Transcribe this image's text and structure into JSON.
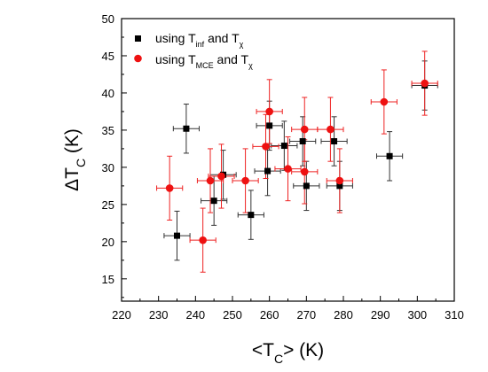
{
  "chart_data": {
    "type": "scatter",
    "xlabel": "<T_C> (K)",
    "ylabel": "ΔT_C (K)",
    "xlim": [
      220,
      310
    ],
    "ylim": [
      12,
      50
    ],
    "xticks": [
      220,
      230,
      240,
      250,
      260,
      270,
      280,
      290,
      300,
      310
    ],
    "yticks": [
      15,
      20,
      25,
      30,
      35,
      40,
      45,
      50
    ],
    "legend_position": "top-left",
    "series": [
      {
        "name_main": "using T",
        "name_sub1": "inf",
        "name_mid": " and T",
        "name_sub2": "χ",
        "marker": "square",
        "color": "#000000",
        "errorbar_color": "#333333",
        "points": [
          {
            "x": 235.0,
            "y": 20.8,
            "xerr": 3.5,
            "yerr": 3.3
          },
          {
            "x": 237.5,
            "y": 35.2,
            "xerr": 3.5,
            "yerr": 3.3
          },
          {
            "x": 245.0,
            "y": 25.5,
            "xerr": 3.5,
            "yerr": 3.3
          },
          {
            "x": 247.5,
            "y": 29.0,
            "xerr": 3.5,
            "yerr": 3.3
          },
          {
            "x": 255.0,
            "y": 23.6,
            "xerr": 3.5,
            "yerr": 3.3
          },
          {
            "x": 259.5,
            "y": 29.5,
            "xerr": 3.5,
            "yerr": 3.3
          },
          {
            "x": 260.0,
            "y": 35.6,
            "xerr": 3.5,
            "yerr": 3.3
          },
          {
            "x": 264.0,
            "y": 32.9,
            "xerr": 3.5,
            "yerr": 3.3
          },
          {
            "x": 269.0,
            "y": 33.5,
            "xerr": 3.5,
            "yerr": 3.3
          },
          {
            "x": 270.0,
            "y": 27.5,
            "xerr": 3.5,
            "yerr": 3.3
          },
          {
            "x": 277.5,
            "y": 33.5,
            "xerr": 3.5,
            "yerr": 3.3
          },
          {
            "x": 279.0,
            "y": 27.5,
            "xerr": 3.5,
            "yerr": 3.3
          },
          {
            "x": 292.5,
            "y": 31.5,
            "xerr": 3.5,
            "yerr": 3.3
          },
          {
            "x": 302.0,
            "y": 41.0,
            "xerr": 3.5,
            "yerr": 3.3
          }
        ]
      },
      {
        "name_main": "using T",
        "name_sub1": "MCE",
        "name_mid": " and T",
        "name_sub2": "χ",
        "marker": "circle",
        "color": "#ee1111",
        "errorbar_color": "#ee2222",
        "points": [
          {
            "x": 233.0,
            "y": 27.2,
            "xerr": 3.5,
            "yerr": 4.3
          },
          {
            "x": 242.0,
            "y": 20.2,
            "xerr": 3.5,
            "yerr": 4.3
          },
          {
            "x": 244.0,
            "y": 28.2,
            "xerr": 3.5,
            "yerr": 4.3
          },
          {
            "x": 247.0,
            "y": 28.8,
            "xerr": 3.5,
            "yerr": 4.3
          },
          {
            "x": 253.5,
            "y": 28.2,
            "xerr": 3.5,
            "yerr": 4.3
          },
          {
            "x": 259.0,
            "y": 32.8,
            "xerr": 3.5,
            "yerr": 4.3
          },
          {
            "x": 260.0,
            "y": 37.5,
            "xerr": 3.5,
            "yerr": 4.3
          },
          {
            "x": 265.0,
            "y": 29.8,
            "xerr": 3.5,
            "yerr": 4.3
          },
          {
            "x": 269.5,
            "y": 35.1,
            "xerr": 3.5,
            "yerr": 4.3
          },
          {
            "x": 269.5,
            "y": 29.4,
            "xerr": 3.5,
            "yerr": 4.3
          },
          {
            "x": 276.5,
            "y": 35.1,
            "xerr": 3.5,
            "yerr": 4.3
          },
          {
            "x": 279.0,
            "y": 28.2,
            "xerr": 3.5,
            "yerr": 4.3
          },
          {
            "x": 291.0,
            "y": 38.8,
            "xerr": 3.5,
            "yerr": 4.3
          },
          {
            "x": 302.0,
            "y": 41.3,
            "xerr": 3.5,
            "yerr": 4.3
          }
        ]
      }
    ]
  }
}
